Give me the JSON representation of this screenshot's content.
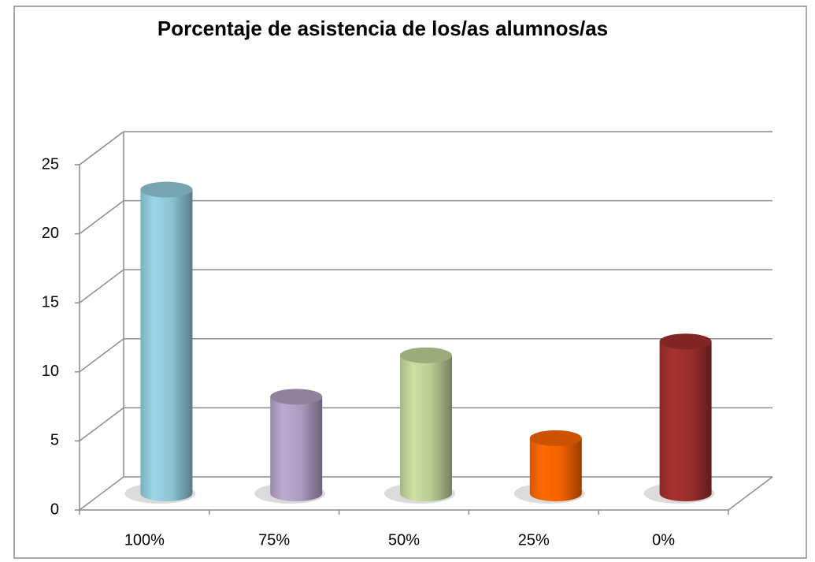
{
  "chart_data": {
    "type": "bar",
    "title": "Porcentaje de asistencia de los/as alumnos/as",
    "categories": [
      "100%",
      "75%",
      "50%",
      "25%",
      "0%"
    ],
    "values": [
      22,
      7,
      10,
      4,
      11
    ],
    "colors": [
      "#93cddd",
      "#b3a2c7",
      "#c3d69b",
      "#ff6600",
      "#a0302f"
    ],
    "ylim": [
      0,
      25
    ],
    "yticks": [
      0,
      5,
      10,
      15,
      20,
      25
    ],
    "grid": true
  }
}
